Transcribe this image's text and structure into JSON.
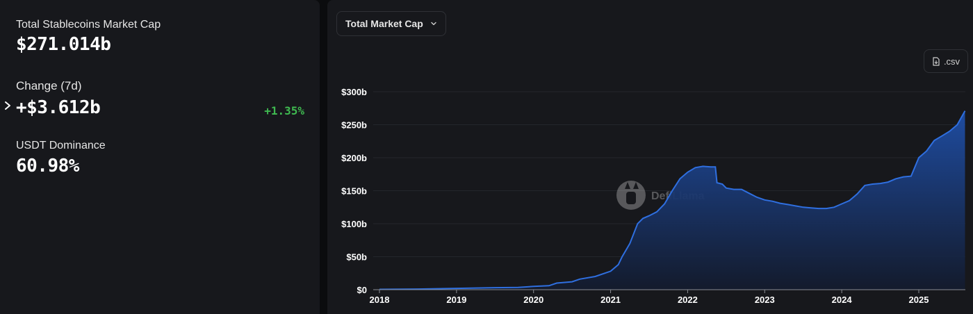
{
  "summary": {
    "total_label": "Total Stablecoins Market Cap",
    "total_value": "$271.014b",
    "change_label": "Change (7d)",
    "change_value": "+$3.612b",
    "change_pct": "+1.35%",
    "dominance_label": "USDT Dominance",
    "dominance_value": "60.98%"
  },
  "controls": {
    "metric_select": "Total Market Cap",
    "csv_label": ".csv"
  },
  "watermark": "DefiLlama",
  "colors": {
    "line": "#2f6fe0",
    "area_top": "#1f4fa8",
    "area_bottom": "#131b2e",
    "positive": "#3fb950",
    "panel": "#17181c",
    "background": "#0b0c0e"
  },
  "chart_data": {
    "type": "area",
    "title": "",
    "xlabel": "",
    "ylabel": "",
    "x_unit": "year",
    "xlim": [
      2018.0,
      2025.6
    ],
    "ylim": [
      0,
      300
    ],
    "y_tick_values": [
      0,
      50,
      100,
      150,
      200,
      250,
      300
    ],
    "y_tick_labels": [
      "$0",
      "$50b",
      "$100b",
      "$150b",
      "$200b",
      "$250b",
      "$300b"
    ],
    "x_tick_values": [
      2018,
      2019,
      2020,
      2021,
      2022,
      2023,
      2024,
      2025
    ],
    "x_tick_labels": [
      "2018",
      "2019",
      "2020",
      "2021",
      "2022",
      "2023",
      "2024",
      "2025"
    ],
    "grid": true,
    "series": [
      {
        "x": [
          2018.0,
          2018.5,
          2019.0,
          2019.5,
          2019.8,
          2020.0,
          2020.2,
          2020.3,
          2020.5,
          2020.6,
          2020.8,
          2021.0,
          2021.1,
          2021.15,
          2021.25,
          2021.35,
          2021.42,
          2021.5,
          2021.6,
          2021.7,
          2021.8,
          2021.9,
          2022.0,
          2022.1,
          2022.2,
          2022.3,
          2022.36,
          2022.38,
          2022.45,
          2022.5,
          2022.6,
          2022.7,
          2022.8,
          2022.9,
          2023.0,
          2023.1,
          2023.2,
          2023.3,
          2023.4,
          2023.5,
          2023.6,
          2023.7,
          2023.8,
          2023.9,
          2024.0,
          2024.1,
          2024.2,
          2024.3,
          2024.4,
          2024.5,
          2024.6,
          2024.7,
          2024.8,
          2024.9,
          2025.0,
          2025.1,
          2025.2,
          2025.3,
          2025.4,
          2025.5,
          2025.6
        ],
        "values": [
          0.5,
          1,
          2,
          3,
          3.5,
          5,
          6,
          10,
          12,
          16,
          20,
          28,
          38,
          50,
          70,
          100,
          108,
          112,
          118,
          130,
          150,
          168,
          178,
          185,
          187,
          186,
          186,
          162,
          160,
          154,
          152,
          152,
          146,
          140,
          136,
          134,
          131,
          129,
          127,
          125,
          124,
          123,
          123,
          125,
          130,
          135,
          145,
          158,
          160,
          161,
          163,
          168,
          171,
          172,
          200,
          210,
          226,
          233,
          240,
          250,
          271
        ]
      }
    ]
  }
}
